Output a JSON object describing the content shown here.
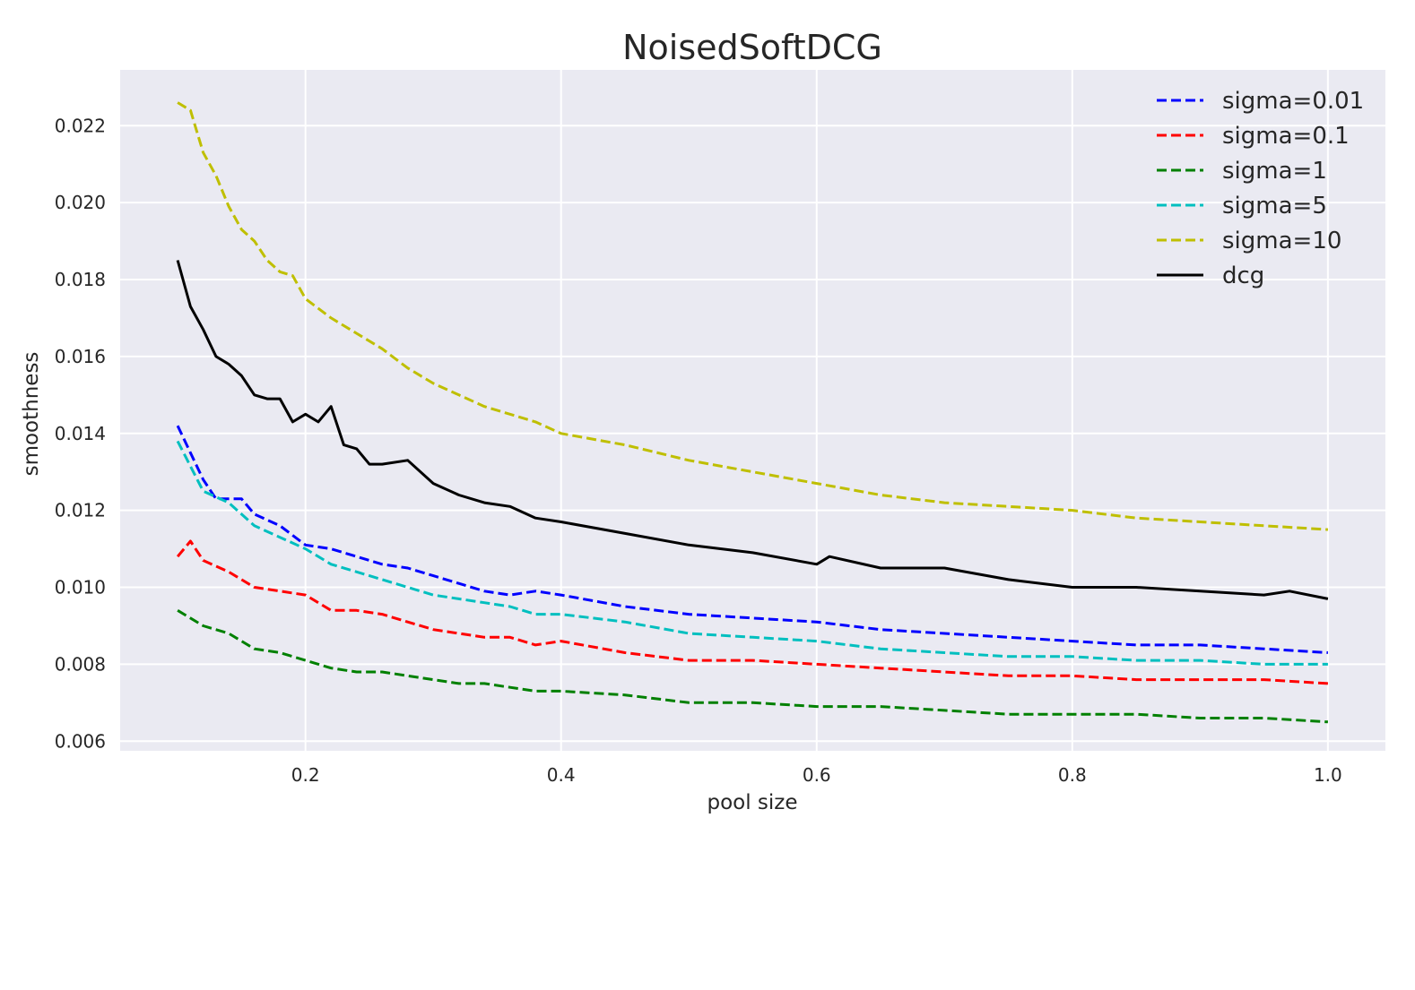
{
  "chart_data": {
    "type": "line",
    "title": "NoisedSoftDCG",
    "xlabel": "pool size",
    "ylabel": "smoothness",
    "xlim": [
      0.055,
      1.045
    ],
    "ylim": [
      0.00575,
      0.02345
    ],
    "xticks": [
      0.2,
      0.4,
      0.6,
      0.8,
      1.0
    ],
    "xtick_labels": [
      "0.2",
      "0.4",
      "0.6",
      "0.8",
      "1.0"
    ],
    "yticks": [
      0.006,
      0.008,
      0.01,
      0.012,
      0.014,
      0.016,
      0.018,
      0.02,
      0.022
    ],
    "ytick_labels": [
      "0.006",
      "0.008",
      "0.010",
      "0.012",
      "0.014",
      "0.016",
      "0.018",
      "0.020",
      "0.022"
    ],
    "grid": true,
    "legend_position": "top-right",
    "background": "#eaeaf2",
    "series": [
      {
        "name": "sigma=0.01",
        "color": "#0000ff",
        "dashed": true,
        "x": [
          0.1,
          0.12,
          0.13,
          0.15,
          0.16,
          0.18,
          0.2,
          0.22,
          0.24,
          0.26,
          0.28,
          0.3,
          0.32,
          0.34,
          0.36,
          0.38,
          0.4,
          0.45,
          0.5,
          0.55,
          0.6,
          0.65,
          0.7,
          0.75,
          0.8,
          0.85,
          0.9,
          0.95,
          1.0
        ],
        "y": [
          0.0142,
          0.0128,
          0.0123,
          0.0123,
          0.0119,
          0.0116,
          0.0111,
          0.011,
          0.0108,
          0.0106,
          0.0105,
          0.0103,
          0.0101,
          0.0099,
          0.0098,
          0.0099,
          0.0098,
          0.0095,
          0.0093,
          0.0092,
          0.0091,
          0.0089,
          0.0088,
          0.0087,
          0.0086,
          0.0085,
          0.0085,
          0.0084,
          0.0083
        ]
      },
      {
        "name": "sigma=0.1",
        "color": "#ff0000",
        "dashed": true,
        "x": [
          0.1,
          0.11,
          0.12,
          0.14,
          0.16,
          0.18,
          0.2,
          0.22,
          0.24,
          0.26,
          0.28,
          0.3,
          0.32,
          0.34,
          0.36,
          0.38,
          0.4,
          0.45,
          0.5,
          0.55,
          0.6,
          0.65,
          0.7,
          0.75,
          0.8,
          0.85,
          0.9,
          0.95,
          1.0
        ],
        "y": [
          0.0108,
          0.0112,
          0.0107,
          0.0104,
          0.01,
          0.0099,
          0.0098,
          0.0094,
          0.0094,
          0.0093,
          0.0091,
          0.0089,
          0.0088,
          0.0087,
          0.0087,
          0.0085,
          0.0086,
          0.0083,
          0.0081,
          0.0081,
          0.008,
          0.0079,
          0.0078,
          0.0077,
          0.0077,
          0.0076,
          0.0076,
          0.0076,
          0.0075
        ]
      },
      {
        "name": "sigma=1",
        "color": "#008000",
        "dashed": true,
        "x": [
          0.1,
          0.12,
          0.14,
          0.16,
          0.18,
          0.2,
          0.22,
          0.24,
          0.26,
          0.28,
          0.3,
          0.32,
          0.34,
          0.36,
          0.38,
          0.4,
          0.45,
          0.5,
          0.55,
          0.6,
          0.65,
          0.7,
          0.75,
          0.8,
          0.85,
          0.9,
          0.95,
          1.0
        ],
        "y": [
          0.0094,
          0.009,
          0.0088,
          0.0084,
          0.0083,
          0.0081,
          0.0079,
          0.0078,
          0.0078,
          0.0077,
          0.0076,
          0.0075,
          0.0075,
          0.0074,
          0.0073,
          0.0073,
          0.0072,
          0.007,
          0.007,
          0.0069,
          0.0069,
          0.0068,
          0.0067,
          0.0067,
          0.0067,
          0.0066,
          0.0066,
          0.0065
        ]
      },
      {
        "name": "sigma=5",
        "color": "#00bfbf",
        "dashed": true,
        "x": [
          0.1,
          0.12,
          0.14,
          0.16,
          0.18,
          0.2,
          0.22,
          0.24,
          0.26,
          0.28,
          0.3,
          0.32,
          0.34,
          0.36,
          0.38,
          0.4,
          0.45,
          0.5,
          0.55,
          0.6,
          0.65,
          0.7,
          0.75,
          0.8,
          0.85,
          0.9,
          0.95,
          1.0
        ],
        "y": [
          0.0138,
          0.0125,
          0.0122,
          0.0116,
          0.0113,
          0.011,
          0.0106,
          0.0104,
          0.0102,
          0.01,
          0.0098,
          0.0097,
          0.0096,
          0.0095,
          0.0093,
          0.0093,
          0.0091,
          0.0088,
          0.0087,
          0.0086,
          0.0084,
          0.0083,
          0.0082,
          0.0082,
          0.0081,
          0.0081,
          0.008,
          0.008
        ]
      },
      {
        "name": "sigma=10",
        "color": "#bfbf00",
        "dashed": true,
        "x": [
          0.1,
          0.11,
          0.12,
          0.13,
          0.14,
          0.15,
          0.16,
          0.17,
          0.18,
          0.19,
          0.2,
          0.22,
          0.24,
          0.26,
          0.28,
          0.3,
          0.32,
          0.34,
          0.36,
          0.38,
          0.4,
          0.45,
          0.5,
          0.55,
          0.6,
          0.65,
          0.7,
          0.75,
          0.8,
          0.85,
          0.9,
          0.95,
          1.0
        ],
        "y": [
          0.0226,
          0.0224,
          0.0213,
          0.0207,
          0.0199,
          0.0193,
          0.019,
          0.0185,
          0.0182,
          0.0181,
          0.0175,
          0.017,
          0.0166,
          0.0162,
          0.0157,
          0.0153,
          0.015,
          0.0147,
          0.0145,
          0.0143,
          0.014,
          0.0137,
          0.0133,
          0.013,
          0.0127,
          0.0124,
          0.0122,
          0.0121,
          0.012,
          0.0118,
          0.0117,
          0.0116,
          0.0115
        ]
      },
      {
        "name": "dcg",
        "color": "#000000",
        "dashed": false,
        "x": [
          0.1,
          0.11,
          0.12,
          0.13,
          0.14,
          0.15,
          0.16,
          0.17,
          0.18,
          0.19,
          0.2,
          0.21,
          0.22,
          0.23,
          0.24,
          0.25,
          0.26,
          0.28,
          0.3,
          0.32,
          0.34,
          0.36,
          0.38,
          0.4,
          0.45,
          0.5,
          0.55,
          0.6,
          0.61,
          0.65,
          0.7,
          0.75,
          0.8,
          0.85,
          0.9,
          0.95,
          0.97,
          1.0
        ],
        "y": [
          0.0185,
          0.0173,
          0.0167,
          0.016,
          0.0158,
          0.0155,
          0.015,
          0.0149,
          0.0149,
          0.0143,
          0.0145,
          0.0143,
          0.0147,
          0.0137,
          0.0136,
          0.0132,
          0.0132,
          0.0133,
          0.0127,
          0.0124,
          0.0122,
          0.0121,
          0.0118,
          0.0117,
          0.0114,
          0.0111,
          0.0109,
          0.0106,
          0.0108,
          0.0105,
          0.0105,
          0.0102,
          0.01,
          0.01,
          0.0099,
          0.0098,
          0.0099,
          0.0097
        ]
      }
    ]
  }
}
